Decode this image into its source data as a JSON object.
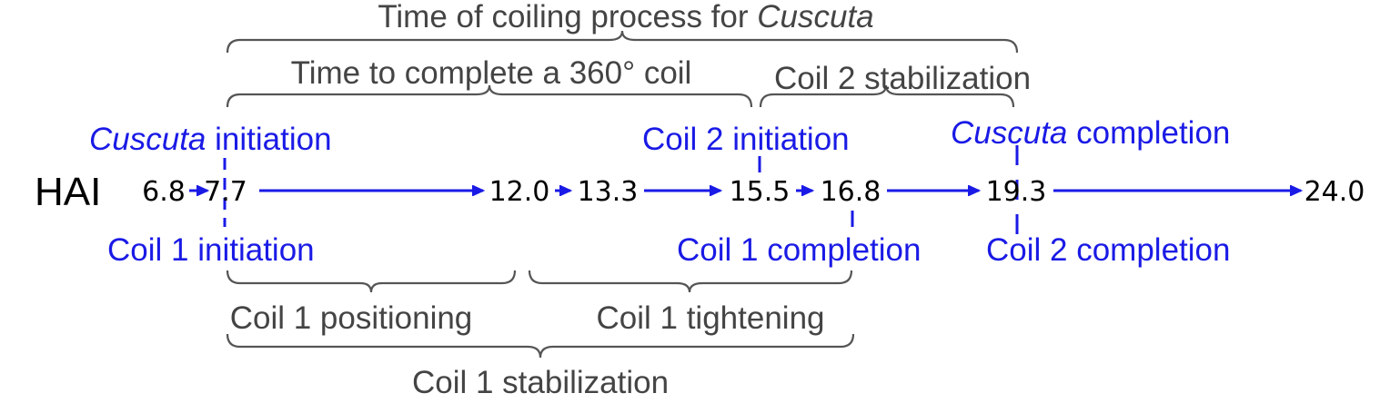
{
  "colors": {
    "event": "#1a1ae6",
    "arrow": "#1a1ae6",
    "brace": "#555555",
    "brace_text": "#444444",
    "tick_text": "#000000"
  },
  "axis_label": "HAI",
  "hai_values": [
    "6.8",
    "7.7",
    "12.0",
    "13.3",
    "15.5",
    "16.8",
    "19.3",
    "24.0"
  ],
  "top_braces": {
    "coiling_process": {
      "prefix": "Time of coiling process for ",
      "emph": "Cuscuta"
    },
    "complete_360": "Time to complete a 360° coil",
    "coil2_stabilization": "Coil 2 stabilization"
  },
  "top_events": {
    "cuscuta_initiation": {
      "emph": "Cuscuta",
      "rest": " initiation"
    },
    "coil2_initiation": "Coil 2 initiation",
    "cuscuta_completion": {
      "emph": "Cuscuta",
      "rest": " completion"
    }
  },
  "bottom_events": {
    "coil1_initiation": "Coil 1 initiation",
    "coil1_completion": "Coil 1 completion",
    "coil2_completion": "Coil 2 completion"
  },
  "bottom_braces": {
    "coil1_positioning": "Coil 1 positioning",
    "coil1_tightening": "Coil 1 tightening",
    "coil1_stabilization": "Coil 1 stabilization"
  }
}
